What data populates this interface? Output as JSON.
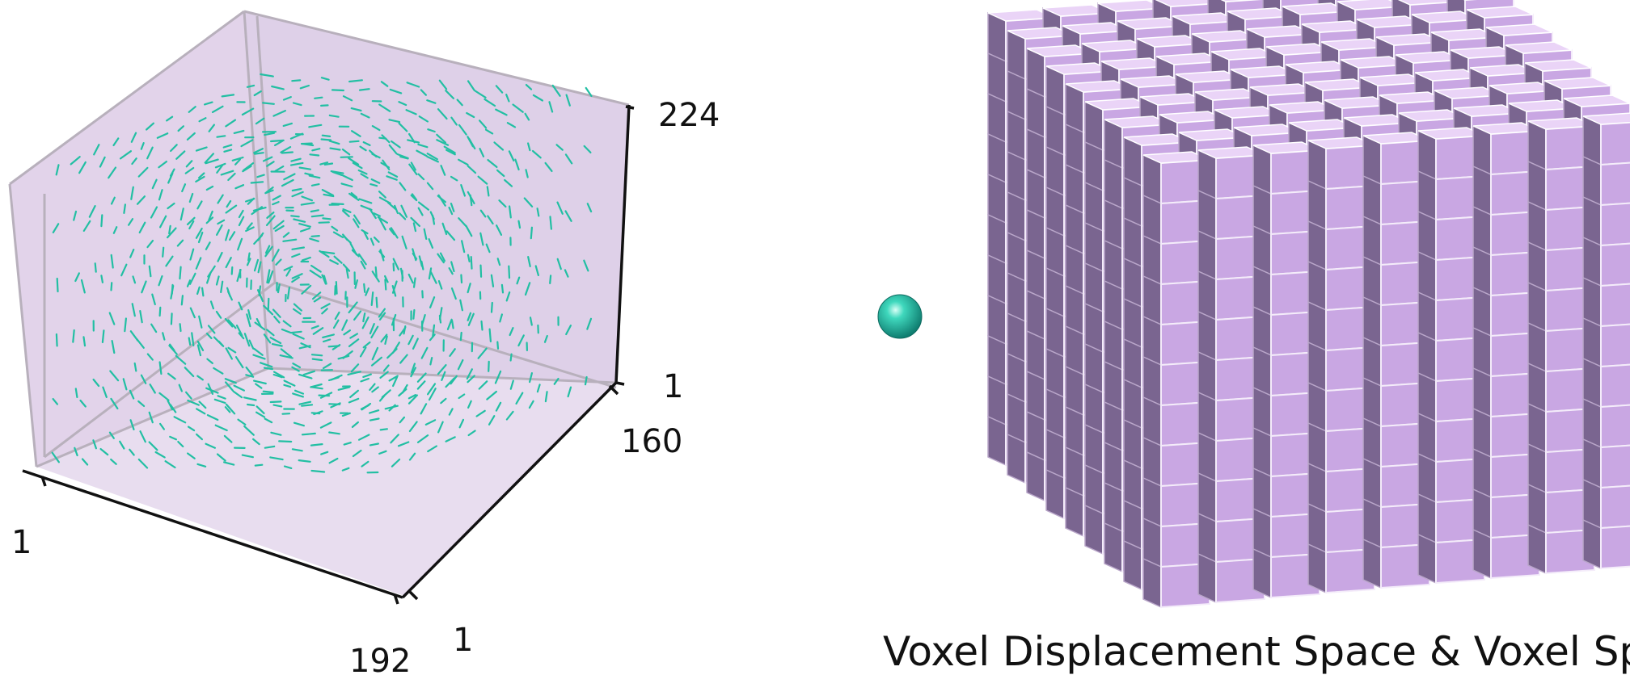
{
  "left_plot": {
    "axis_labels": {
      "x_start": "1",
      "x_end": "192",
      "y_start": "1",
      "y_end": "160",
      "z_start": "1",
      "z_end": "224"
    },
    "colors": {
      "panel_fill": "#e2d3ea",
      "panel_edge": "#b8b0bc",
      "vector": "#22bfa3",
      "axis": "#111111"
    }
  },
  "right_diagram": {
    "caption": "Voxel Displacement Space & Voxel Space",
    "grid": {
      "columns": 9,
      "rows": 11,
      "depth": 9
    },
    "colors": {
      "cube_top": "#ead4f7",
      "cube_front": "#c9a7e3",
      "cube_side": "#7a6590",
      "sphere": "#1fc4aa"
    }
  }
}
